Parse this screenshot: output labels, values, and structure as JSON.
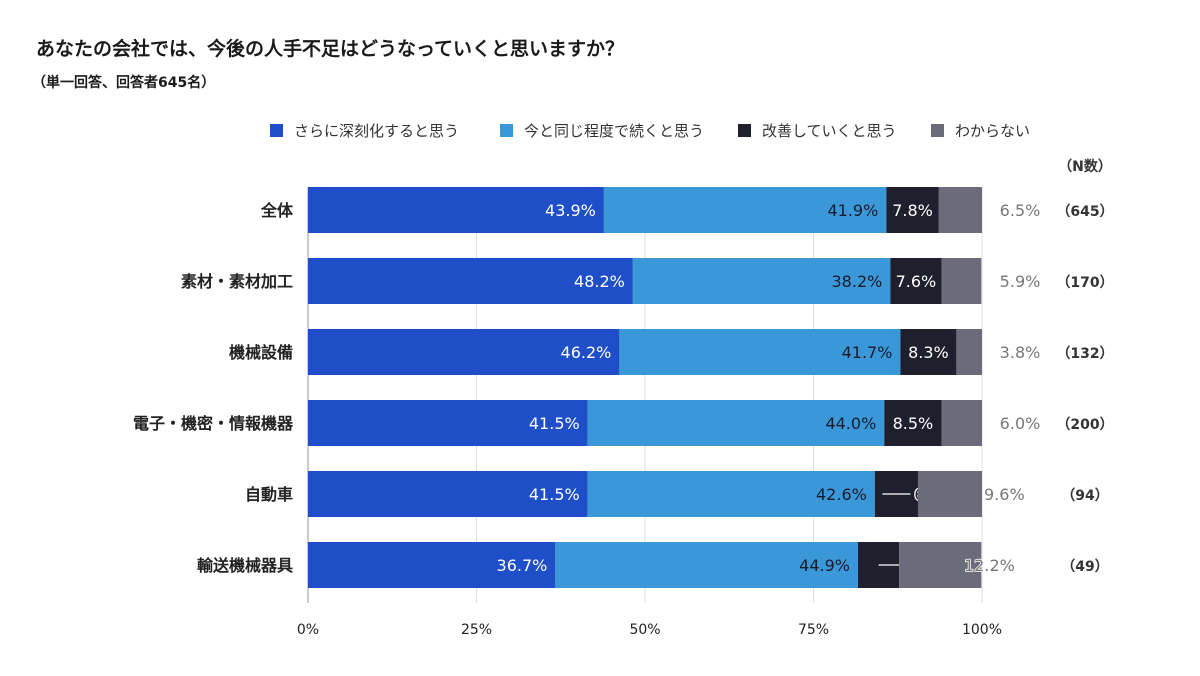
{
  "chart_data": {
    "type": "bar",
    "orientation": "horizontal",
    "stacked": "100%",
    "title": "あなたの会社では、今後の人手不足はどうなっていくと思いますか？",
    "subtitle": "（単一回答、回答者645名）",
    "n_header": "（N数）",
    "legend_position": "top",
    "grid": true,
    "xlim": [
      0,
      100
    ],
    "x_ticks": [
      "0%",
      "25%",
      "50%",
      "75%",
      "100%"
    ],
    "categories": [
      "全体",
      "素材・素材加工",
      "機械設備",
      "電子・機密・情報機器",
      "自動車",
      "輸送機械器具"
    ],
    "n_values": [
      "（645）",
      "（170）",
      "（132）",
      "（200）",
      "（94）",
      "（49）"
    ],
    "series": [
      {
        "name": "さらに深刻化すると思う",
        "color": "#1f4fc8",
        "label_color": "#ffffff",
        "values": [
          43.9,
          48.2,
          46.2,
          41.5,
          41.5,
          36.7
        ]
      },
      {
        "name": "今と同じ程度で続くと思う",
        "color": "#3a98d8",
        "label_color": "#1a1a2e",
        "values": [
          41.9,
          38.2,
          41.7,
          44.0,
          42.6,
          44.9
        ]
      },
      {
        "name": "改善していくと思う",
        "color": "#1f1f2e",
        "label_color": "#ffffff",
        "values": [
          7.8,
          7.6,
          8.3,
          8.5,
          6.4,
          6.1
        ]
      },
      {
        "name": "わからない",
        "color": "#6b6b7b",
        "label_color": "#777777",
        "values": [
          6.5,
          5.9,
          3.8,
          6.0,
          9.6,
          12.2
        ]
      }
    ]
  }
}
